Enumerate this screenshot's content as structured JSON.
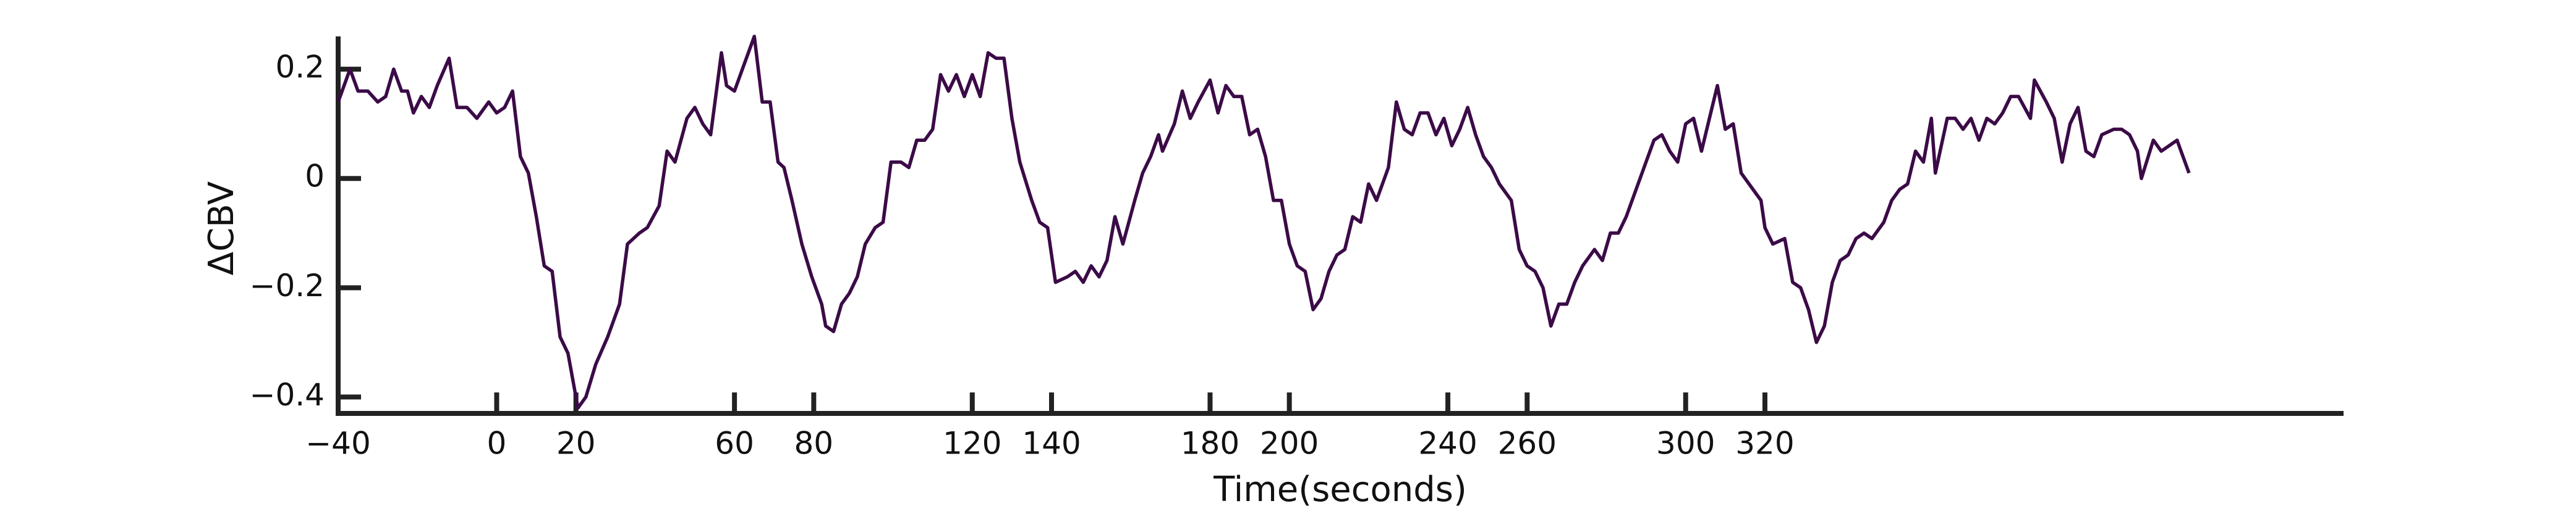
{
  "chart_data": {
    "type": "line",
    "xlabel": "Time(seconds)",
    "ylabel": "ΔCBV",
    "xlim": [
      -40,
      466
    ],
    "ylim": [
      -0.43,
      0.26
    ],
    "xticks": [
      {
        "value": -40,
        "label": "−40"
      },
      0,
      20,
      60,
      80,
      120,
      140,
      180,
      200,
      240,
      260,
      300,
      320
    ],
    "yticks": [
      0.2,
      0,
      {
        "value": -0.2,
        "label": "−0.2"
      },
      {
        "value": -0.4,
        "label": "−0.4"
      }
    ],
    "grid": false,
    "series": [
      {
        "color": "#3b0b47",
        "x": [
          -40,
          -37,
          -35,
          -32.5,
          -30,
          -28,
          -26,
          -24,
          -22.5,
          -21,
          -19,
          -17,
          -15,
          -12,
          -10,
          -7.5,
          -5,
          -2,
          0,
          2,
          4,
          6,
          8,
          10,
          12,
          14,
          16,
          18,
          20.5,
          22.5,
          25,
          28,
          31,
          33,
          36,
          38,
          41,
          43,
          45,
          48,
          50,
          52,
          54,
          56.7,
          58,
          60,
          62.5,
          65,
          67,
          69,
          71,
          72.5,
          74.5,
          77,
          79.5,
          82,
          83,
          85,
          87,
          89,
          91,
          93,
          95.5,
          97.5,
          99.5,
          102,
          104,
          106,
          108,
          110,
          112,
          114,
          116,
          118,
          120,
          122,
          124,
          126,
          128,
          130,
          132,
          135,
          137,
          139,
          141,
          144,
          146,
          148,
          150,
          152,
          154,
          156,
          158,
          161,
          163,
          165,
          167,
          168,
          171,
          173,
          175,
          177,
          180,
          182,
          184,
          186,
          188,
          190,
          192,
          194,
          196,
          198,
          200,
          202,
          204,
          206,
          208,
          210,
          212,
          214,
          216,
          218,
          220,
          222,
          225,
          227,
          229,
          231,
          233,
          235,
          237,
          239,
          241,
          243,
          245,
          247,
          249,
          251,
          253,
          256,
          258,
          260,
          262,
          264,
          266,
          268,
          270,
          272,
          274,
          277,
          279,
          281,
          283,
          285,
          287,
          289,
          292,
          294,
          296,
          298,
          300,
          302,
          304,
          306,
          308,
          310,
          312,
          314,
          316,
          319,
          320,
          322,
          325,
          327,
          329,
          331,
          333,
          335,
          337,
          339,
          341,
          343,
          345,
          347,
          350,
          352,
          354,
          356,
          358,
          360,
          362,
          363,
          366,
          368,
          370,
          372,
          374,
          376,
          378,
          380,
          382,
          384,
          387,
          388,
          391,
          393,
          395,
          397,
          399,
          401,
          403,
          405,
          408,
          410,
          412,
          414,
          415,
          418,
          420,
          422,
          424,
          425,
          427
        ],
        "values": [
          0.14,
          0.2,
          0.16,
          0.16,
          0.14,
          0.15,
          0.2,
          0.16,
          0.16,
          0.12,
          0.15,
          0.13,
          0.17,
          0.22,
          0.13,
          0.13,
          0.11,
          0.14,
          0.12,
          0.13,
          0.16,
          0.04,
          0.01,
          -0.07,
          -0.16,
          -0.17,
          -0.29,
          -0.32,
          -0.42,
          -0.4,
          -0.34,
          -0.29,
          -0.23,
          -0.12,
          -0.1,
          -0.09,
          -0.05,
          0.05,
          0.03,
          0.11,
          0.13,
          0.1,
          0.08,
          0.23,
          0.17,
          0.16,
          0.21,
          0.26,
          0.14,
          0.14,
          0.03,
          0.02,
          -0.04,
          -0.12,
          -0.18,
          -0.23,
          -0.27,
          -0.28,
          -0.23,
          -0.21,
          -0.18,
          -0.12,
          -0.09,
          -0.08,
          0.03,
          0.03,
          0.02,
          0.07,
          0.07,
          0.09,
          0.19,
          0.16,
          0.19,
          0.15,
          0.19,
          0.15,
          0.23,
          0.22,
          0.22,
          0.11,
          0.03,
          -0.04,
          -0.08,
          -0.09,
          -0.19,
          -0.18,
          -0.17,
          -0.19,
          -0.16,
          -0.18,
          -0.15,
          -0.07,
          -0.12,
          -0.04,
          0.01,
          0.04,
          0.08,
          0.05,
          0.1,
          0.16,
          0.11,
          0.14,
          0.18,
          0.12,
          0.17,
          0.15,
          0.15,
          0.08,
          0.09,
          0.04,
          -0.04,
          -0.04,
          -0.12,
          -0.16,
          -0.17,
          -0.24,
          -0.22,
          -0.17,
          -0.14,
          -0.13,
          -0.07,
          -0.08,
          -0.01,
          -0.04,
          0.02,
          0.14,
          0.09,
          0.08,
          0.12,
          0.12,
          0.08,
          0.11,
          0.06,
          0.09,
          0.13,
          0.08,
          0.04,
          0.02,
          -0.01,
          -0.04,
          -0.13,
          -0.16,
          -0.17,
          -0.2,
          -0.27,
          -0.23,
          -0.23,
          -0.19,
          -0.16,
          -0.13,
          -0.15,
          -0.1,
          -0.1,
          -0.07,
          -0.03,
          0.01,
          0.07,
          0.08,
          0.05,
          0.03,
          0.1,
          0.11,
          0.05,
          0.11,
          0.17,
          0.09,
          0.1,
          0.01,
          -0.01,
          -0.04,
          -0.09,
          -0.12,
          -0.11,
          -0.19,
          -0.2,
          -0.24,
          -0.3,
          -0.27,
          -0.19,
          -0.15,
          -0.14,
          -0.11,
          -0.1,
          -0.11,
          -0.08,
          -0.04,
          -0.02,
          -0.01,
          0.05,
          0.03,
          0.11,
          0.01,
          0.11,
          0.11,
          0.09,
          0.11,
          0.07,
          0.11,
          0.1,
          0.12,
          0.15,
          0.15,
          0.11,
          0.18,
          0.14,
          0.11,
          0.03,
          0.1,
          0.13,
          0.05,
          0.04,
          0.08,
          0.09,
          0.09,
          0.08,
          0.05,
          0,
          0.07,
          0.05,
          0.06,
          0.07,
          0.05,
          0.01
        ]
      }
    ]
  }
}
